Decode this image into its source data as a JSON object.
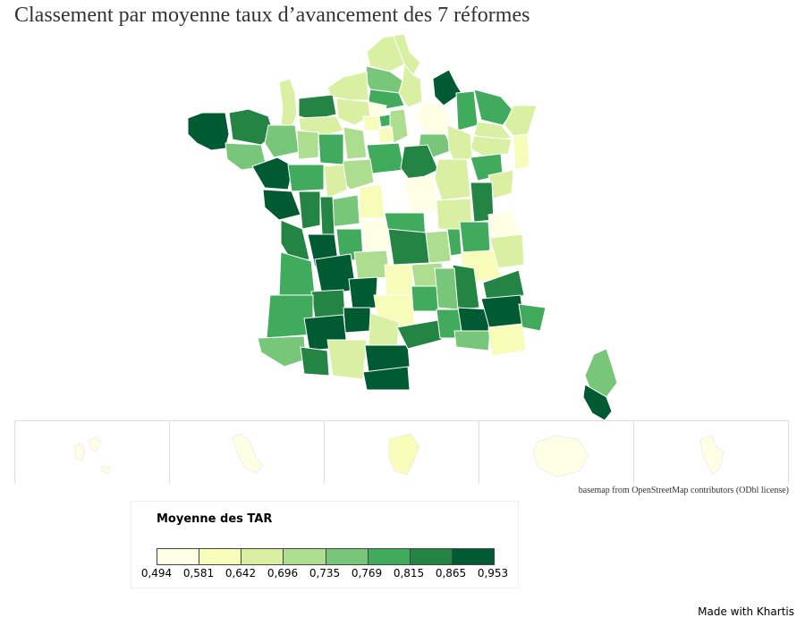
{
  "title": "Classement par moyenne taux d’avancement des 7 réformes",
  "attribution": "basemap from OpenStreetMap contributors (ODbl license)",
  "credit": "Made with Khartis",
  "legend": {
    "title": "Moyenne des TAR",
    "breaks": [
      "0,494",
      "0,581",
      "0,642",
      "0,696",
      "0,735",
      "0,769",
      "0,815",
      "0,865",
      "0,953"
    ],
    "colors": [
      "#ffffe5",
      "#f7fcb9",
      "#d9f0a3",
      "#addd8e",
      "#78c679",
      "#41ab5d",
      "#238443",
      "#005a32"
    ]
  },
  "overseas": [
    {
      "name": "Guadeloupe",
      "class_index": 0
    },
    {
      "name": "Martinique",
      "class_index": 0
    },
    {
      "name": "Guyane",
      "class_index": 1
    },
    {
      "name": "La Réunion",
      "class_index": 0
    },
    {
      "name": "Mayotte",
      "class_index": 0
    }
  ]
}
